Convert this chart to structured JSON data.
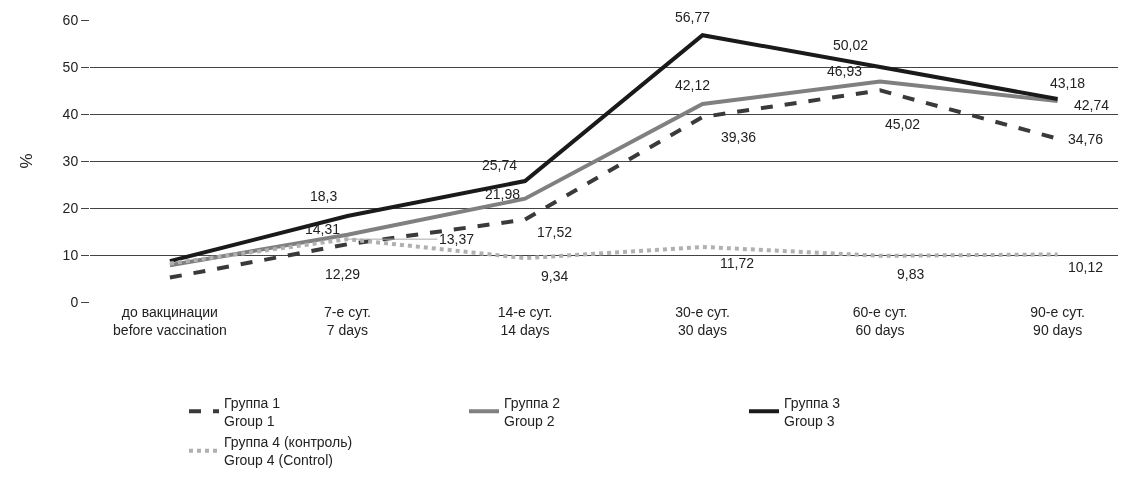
{
  "chart_data": {
    "type": "line",
    "ylabel": "%",
    "categories": [
      "до вакцинации\nbefore vaccination",
      "7-е сут.\n7 days",
      "14-е сут.\n14 days",
      "30-е сут.\n30 days",
      "60-е сут.\n60 days",
      "90-е сут.\n90 days"
    ],
    "series": [
      {
        "name": "Группа 1\nGroup 1",
        "color": "#3a3a3a",
        "line_style": "dashed",
        "values": [
          5.2,
          12.29,
          17.52,
          39.36,
          45.02,
          34.76
        ],
        "value_labels": [
          null,
          "12,29",
          "17,52",
          "39,36",
          "45,02",
          "34,76"
        ]
      },
      {
        "name": "Группа 2\nGroup 2",
        "color": "#808080",
        "line_style": "solid",
        "values": [
          7.8,
          14.31,
          21.98,
          42.12,
          46.93,
          42.74
        ],
        "value_labels": [
          null,
          "14,31",
          "21,98",
          "42,12",
          "46,93",
          "42,74"
        ]
      },
      {
        "name": "Группа 3\nGroup 3",
        "color": "#1a1a1a",
        "line_style": "solid",
        "values": [
          8.7,
          18.3,
          25.74,
          56.77,
          50.02,
          43.18
        ],
        "value_labels": [
          null,
          "18,3",
          "25,74",
          "56,77",
          "50,02",
          "43,18"
        ]
      },
      {
        "name": "Группа 4 (контроль)\nGroup 4 (Control)",
        "color": "#b0b0b0",
        "line_style": "dotted",
        "values": [
          8.2,
          13.37,
          9.34,
          11.72,
          9.83,
          10.12
        ],
        "value_labels": [
          null,
          "13,37",
          "9,34",
          "11,72",
          "9,83",
          "10,12"
        ]
      }
    ],
    "ylim": [
      0,
      60
    ],
    "yticks": [
      0,
      10,
      20,
      30,
      40,
      50,
      60
    ],
    "grid": "y",
    "legend": "bottom",
    "marker": "none"
  }
}
